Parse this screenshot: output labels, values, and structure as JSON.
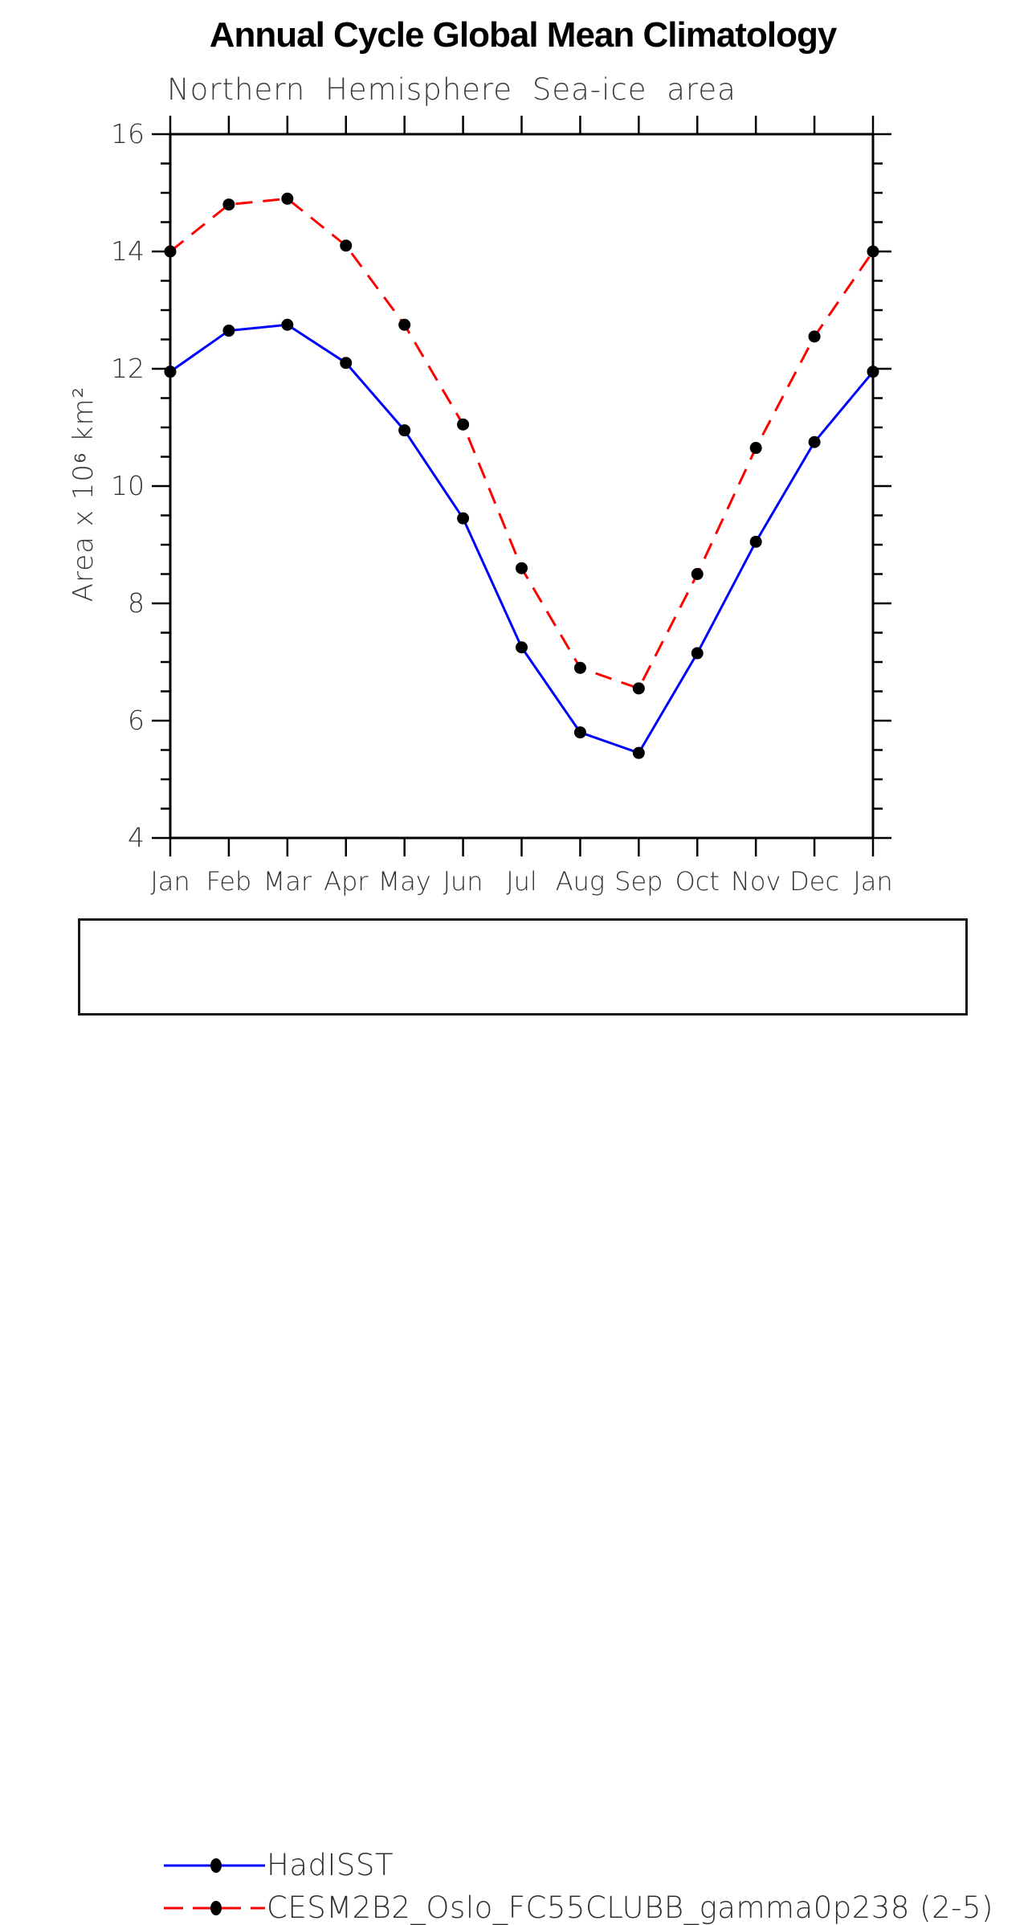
{
  "chart_data": {
    "type": "line",
    "title": "Annual Cycle Global Mean Climatology",
    "subtitle": "Northern Hemisphere Sea-ice area",
    "xlabel": "",
    "ylabel": "Area x 10⁶ km²",
    "categories": [
      "Jan",
      "Feb",
      "Mar",
      "Apr",
      "May",
      "Jun",
      "Jul",
      "Aug",
      "Sep",
      "Oct",
      "Nov",
      "Dec",
      "Jan"
    ],
    "ylim": [
      4,
      16
    ],
    "yticks_major": [
      4,
      6,
      8,
      10,
      12,
      14,
      16
    ],
    "ytick_minor_interval": 0.5,
    "grid": false,
    "legend_position": "bottom-box",
    "frame_color": "#000000",
    "marker_color": "#000000",
    "marker_shape": "filled-circle",
    "series": [
      {
        "name": "HadISST",
        "color": "#0000ff",
        "line_style": "solid",
        "values": [
          11.95,
          12.65,
          12.75,
          12.1,
          10.95,
          9.45,
          7.25,
          5.8,
          5.45,
          7.15,
          9.05,
          10.75,
          11.95
        ]
      },
      {
        "name": "CESM2B2_Oslo_FC55CLUBB_gamma0p238 (2-5)",
        "color": "#ff0000",
        "line_style": "dashed",
        "values": [
          14.0,
          14.8,
          14.9,
          14.1,
          12.75,
          11.05,
          8.6,
          6.9,
          6.55,
          8.5,
          10.65,
          12.55,
          14.0
        ]
      }
    ]
  }
}
